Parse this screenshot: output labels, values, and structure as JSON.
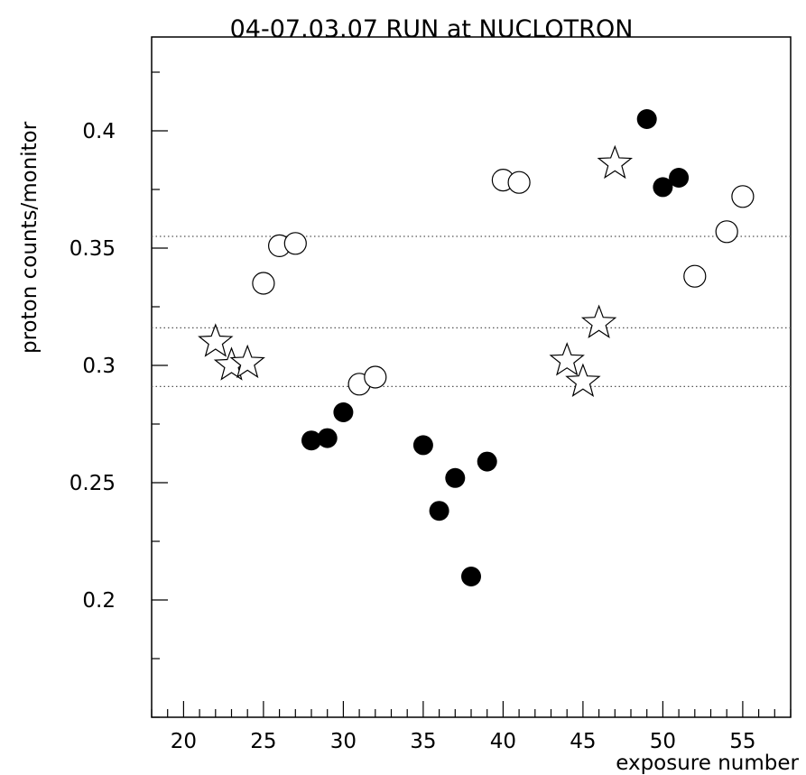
{
  "chart_data": {
    "type": "scatter",
    "title": "04-07.03.07 RUN at NUCLOTRON",
    "xlabel": "exposure number",
    "ylabel": "proton counts/monitor",
    "xlim": [
      18,
      58
    ],
    "ylim": [
      0.15,
      0.44
    ],
    "x_ticks": [
      20,
      25,
      30,
      35,
      40,
      45,
      50,
      55
    ],
    "y_ticks": [
      0.2,
      0.25,
      0.3,
      0.35,
      0.4
    ],
    "x_tick_labels": [
      "20",
      "25",
      "30",
      "35",
      "40",
      "45",
      "50",
      "55"
    ],
    "y_tick_labels": [
      "0.2",
      "0.25",
      "0.3",
      "0.35",
      "0.4"
    ],
    "reference_lines": [
      0.355,
      0.316,
      0.291
    ],
    "series": [
      {
        "marker": "filled-circle",
        "points": [
          [
            28,
            0.268
          ],
          [
            29,
            0.269
          ],
          [
            30,
            0.28
          ],
          [
            35,
            0.266
          ],
          [
            36,
            0.238
          ],
          [
            37,
            0.252
          ],
          [
            38,
            0.21
          ],
          [
            39,
            0.259
          ],
          [
            49,
            0.405
          ],
          [
            50,
            0.376
          ],
          [
            51,
            0.38
          ]
        ]
      },
      {
        "marker": "open-circle",
        "points": [
          [
            25,
            0.335
          ],
          [
            26,
            0.351
          ],
          [
            27,
            0.352
          ],
          [
            31,
            0.292
          ],
          [
            32,
            0.295
          ],
          [
            40,
            0.379
          ],
          [
            41,
            0.378
          ],
          [
            52,
            0.338
          ],
          [
            54,
            0.357
          ],
          [
            55,
            0.372
          ]
        ]
      },
      {
        "marker": "open-star",
        "points": [
          [
            22,
            0.31
          ],
          [
            23,
            0.3
          ],
          [
            24,
            0.301
          ],
          [
            44,
            0.302
          ],
          [
            45,
            0.293
          ],
          [
            46,
            0.318
          ],
          [
            47,
            0.386
          ]
        ]
      }
    ]
  }
}
